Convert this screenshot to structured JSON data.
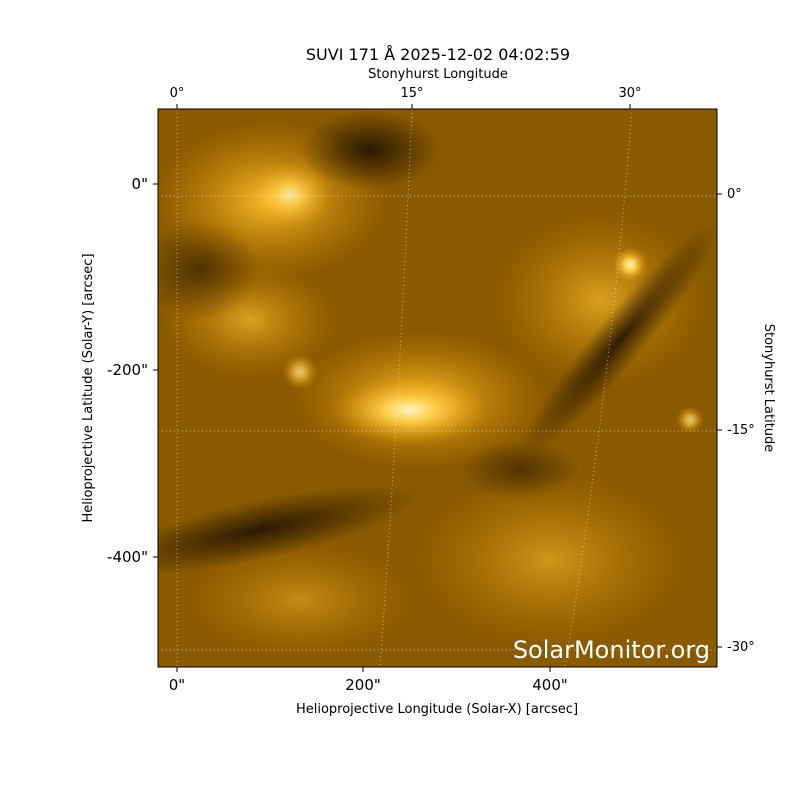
{
  "title": "SUVI 171 Å 2025-12-02 04:02:59",
  "top_axis": {
    "label": "Stonyhurst Longitude",
    "ticks": [
      "0°",
      "15°",
      "30°"
    ]
  },
  "right_axis": {
    "label": "Stonyhurst Latitude",
    "ticks": [
      "0°",
      "-15°",
      "-30°"
    ]
  },
  "x_axis": {
    "label": "Helioprojective Longitude (Solar-X) [arcsec]",
    "ticks": [
      "0\"",
      "200\"",
      "400\""
    ]
  },
  "y_axis": {
    "label": "Helioprojective Latitude (Solar-Y) [arcsec]",
    "ticks": [
      "0\"",
      "-200\"",
      "-400\""
    ]
  },
  "watermark": "SolarMonitor.org"
}
